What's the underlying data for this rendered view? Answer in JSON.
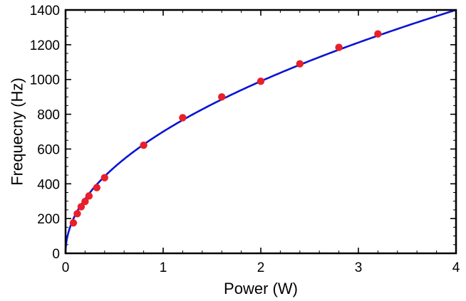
{
  "chart_data": {
    "type": "scatter",
    "title": "",
    "xlabel": "Power (W)",
    "ylabel": "Frequecny (Hz)",
    "xlim": [
      0,
      4
    ],
    "ylim": [
      0,
      1400
    ],
    "xticks": [
      0,
      1,
      2,
      3,
      4
    ],
    "yticks": [
      0,
      200,
      400,
      600,
      800,
      1000,
      1200,
      1400
    ],
    "grid": false,
    "legend": "none",
    "series": [
      {
        "kind": "points",
        "color": "#e8202a",
        "x": [
          0.08,
          0.12,
          0.16,
          0.2,
          0.24,
          0.32,
          0.4,
          0.8,
          1.2,
          1.6,
          2.0,
          2.4,
          2.8,
          3.2
        ],
        "y": [
          175,
          228,
          268,
          298,
          330,
          378,
          435,
          622,
          780,
          900,
          990,
          1090,
          1185,
          1262
        ]
      },
      {
        "kind": "fit-curve",
        "color": "#0a14d2",
        "model": "y = a * x^b",
        "a": 700,
        "b": 0.5
      }
    ]
  }
}
